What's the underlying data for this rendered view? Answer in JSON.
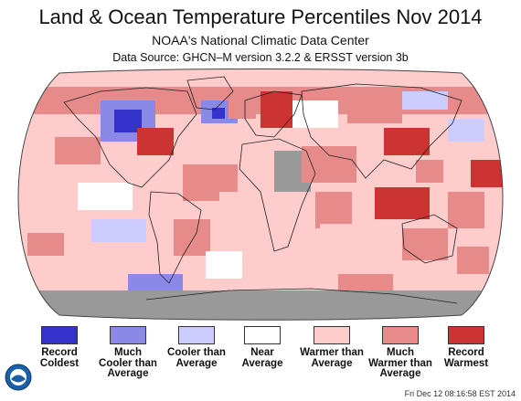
{
  "title": "Land & Ocean Temperature Percentiles Nov 2014",
  "subtitle": "NOAA's National Climatic Data Center",
  "source": "Data Source: GHCN–M version 3.2.2 & ERSST version 3b",
  "timestamp": "Fri Dec 12 08:16:58 EST 2014",
  "legend": [
    {
      "label": "Record\nColdest",
      "color": "#3333cc"
    },
    {
      "label": "Much\nCooler than\nAverage",
      "color": "#8a8ae6"
    },
    {
      "label": "Cooler than\nAverage",
      "color": "#ccccff"
    },
    {
      "label": "Near\nAverage",
      "color": "#ffffff"
    },
    {
      "label": "Warmer than\nAverage",
      "color": "#ffcccc"
    },
    {
      "label": "Much\nWarmer than\nAverage",
      "color": "#e68a8a"
    },
    {
      "label": "Record\nWarmest",
      "color": "#cc3333"
    }
  ],
  "colors": {
    "missing": "#999999",
    "land_outline": "#222222"
  },
  "logo_icon": "noaa-logo"
}
